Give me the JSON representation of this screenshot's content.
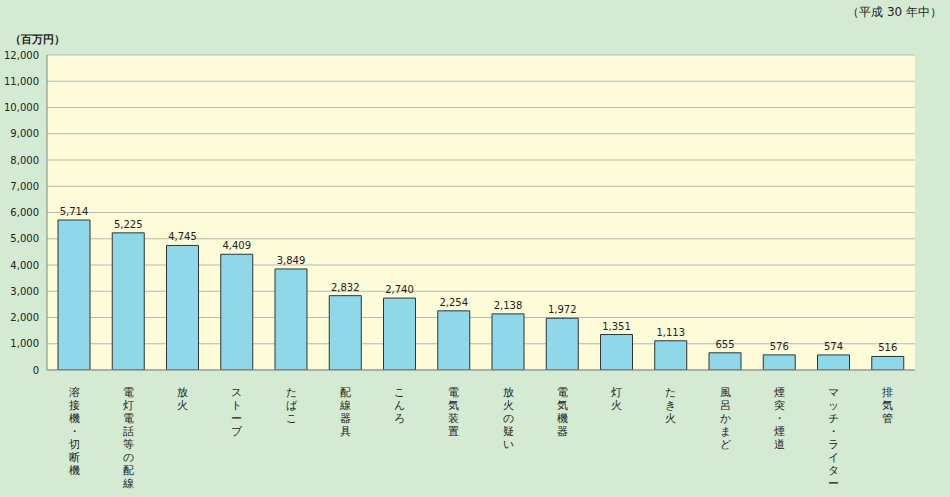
{
  "chart_data": {
    "type": "bar",
    "subtitle": "（平成 30 年中）",
    "ylabel": "（百万円）",
    "categories": [
      "溶接機・切断機",
      "電灯電話等の配線",
      "放火",
      "ストーブ",
      "たばこ",
      "配線器具",
      "こんろ",
      "電気装置",
      "放火の疑い",
      "電気機器",
      "灯火",
      "たき火",
      "風呂かまど",
      "煙突・煙道",
      "マッチ・ライター",
      "排気管"
    ],
    "values": [
      5714,
      5225,
      4745,
      4409,
      3849,
      2832,
      2740,
      2254,
      2138,
      1972,
      1351,
      1113,
      655,
      576,
      574,
      516
    ],
    "value_labels": [
      "5,714",
      "5,225",
      "4,745",
      "4,409",
      "3,849",
      "2,832",
      "2,740",
      "2,254",
      "2,138",
      "1,972",
      "1,351",
      "1,113",
      "655",
      "576",
      "574",
      "516"
    ],
    "color": "#8fd8ea",
    "ylim": [
      0,
      12000
    ],
    "yticks": [
      0,
      {
        "value": 1000,
        "label": "1,000"
      },
      {
        "value": 2000,
        "label": "2,000"
      },
      {
        "value": 3000,
        "label": "3,000"
      },
      {
        "value": 4000,
        "label": "4,000"
      },
      {
        "value": 5000,
        "label": "5,000"
      },
      {
        "value": 6000,
        "label": "6,000"
      },
      {
        "value": 7000,
        "label": "7,000"
      },
      {
        "value": 8000,
        "label": "8,000"
      },
      {
        "value": 9000,
        "label": "9,000"
      },
      {
        "value": 10000,
        "label": "10,000"
      },
      {
        "value": 11000,
        "label": "11,000"
      },
      {
        "value": 12000,
        "label": "12,000"
      }
    ],
    "grid": true,
    "data_labels": true
  }
}
